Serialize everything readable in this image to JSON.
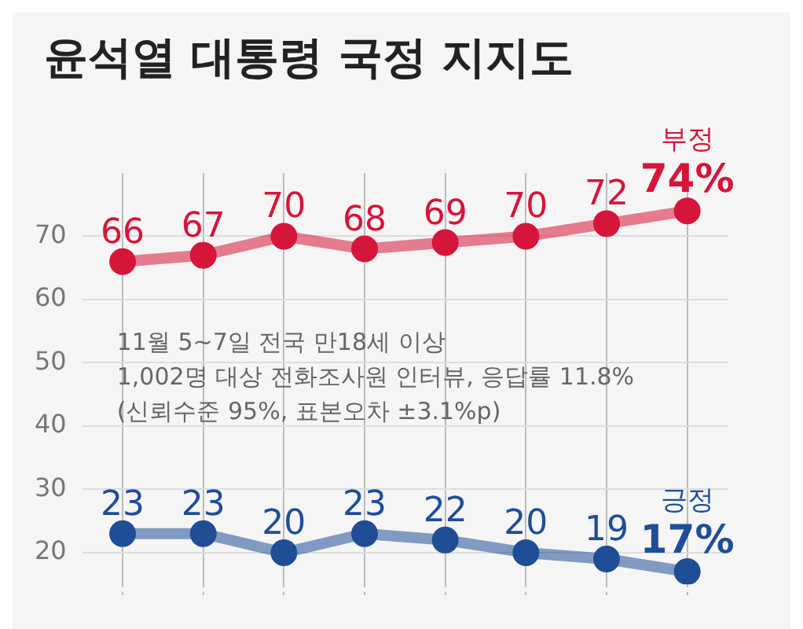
{
  "chart_data": {
    "type": "line",
    "title": "윤석열 대통령 국정 지지도",
    "categories": [
      null,
      null,
      null,
      null,
      null,
      null,
      null,
      null
    ],
    "series": [
      {
        "name": "부정",
        "color": "#d6153a",
        "values": [
          66,
          67,
          70,
          68,
          69,
          70,
          72,
          74
        ],
        "value_labels": [
          "66",
          "67",
          "70",
          "68",
          "69",
          "70",
          "72",
          "74%"
        ]
      },
      {
        "name": "긍정",
        "color": "#1f4e96",
        "values": [
          23,
          23,
          20,
          23,
          22,
          20,
          19,
          17
        ],
        "value_labels": [
          "23",
          "23",
          "20",
          "23",
          "22",
          "20",
          "19",
          "17%"
        ]
      }
    ],
    "ylim": [
      15,
      80
    ],
    "yticks": [
      20,
      30,
      40,
      50,
      60,
      70
    ],
    "grid": true,
    "legend": false,
    "marker": "circle",
    "line_style": "solid",
    "annotations": [
      "11월 5~7일 전국 만18세 이상",
      "1,002명 대상 전화조사원 인터뷰, 응답률 11.8%",
      "(신뢰수준 95%, 표본오차 ±3.1%p)"
    ]
  }
}
